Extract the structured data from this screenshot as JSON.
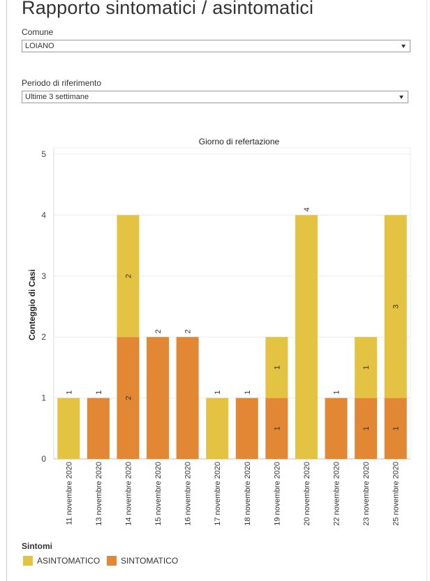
{
  "page": {
    "title": "Rapporto sintomatici / asintomatici"
  },
  "filters": {
    "comune": {
      "label": "Comune",
      "value": "LOIANO"
    },
    "periodo": {
      "label": "Periodo di riferimento",
      "value": "Ultime 3 settimane"
    }
  },
  "legend": {
    "title": "Sintomi",
    "items": [
      {
        "label": "ASINTOMATICO",
        "color": "#e4c343"
      },
      {
        "label": "SINTOMATICO",
        "color": "#e28733"
      }
    ]
  },
  "chart_data": {
    "type": "bar",
    "stacked": true,
    "title": "Giorno di refertazione",
    "xlabel": "",
    "ylabel": "Conteggio di Casi",
    "ylim": [
      0,
      5
    ],
    "yticks": [
      0,
      1,
      2,
      3,
      4,
      5
    ],
    "grid": true,
    "legend_position": "bottom-left",
    "categories": [
      "11 novembre 2020",
      "13 novembre 2020",
      "14 novembre 2020",
      "15 novembre 2020",
      "16 novembre 2020",
      "17 novembre 2020",
      "18 novembre 2020",
      "19 novembre 2020",
      "20 novembre 2020",
      "22 novembre 2020",
      "23 novembre 2020",
      "25 novembre 2020"
    ],
    "series": [
      {
        "name": "SINTOMATICO",
        "color": "#e28733",
        "values": [
          0,
          1,
          2,
          2,
          2,
          0,
          1,
          1,
          0,
          1,
          1,
          1
        ]
      },
      {
        "name": "ASINTOMATICO",
        "color": "#e4c343",
        "values": [
          1,
          0,
          2,
          0,
          0,
          1,
          0,
          1,
          4,
          0,
          1,
          3
        ]
      }
    ],
    "totals": [
      1,
      1,
      4,
      2,
      2,
      1,
      1,
      2,
      4,
      1,
      2,
      4
    ]
  }
}
